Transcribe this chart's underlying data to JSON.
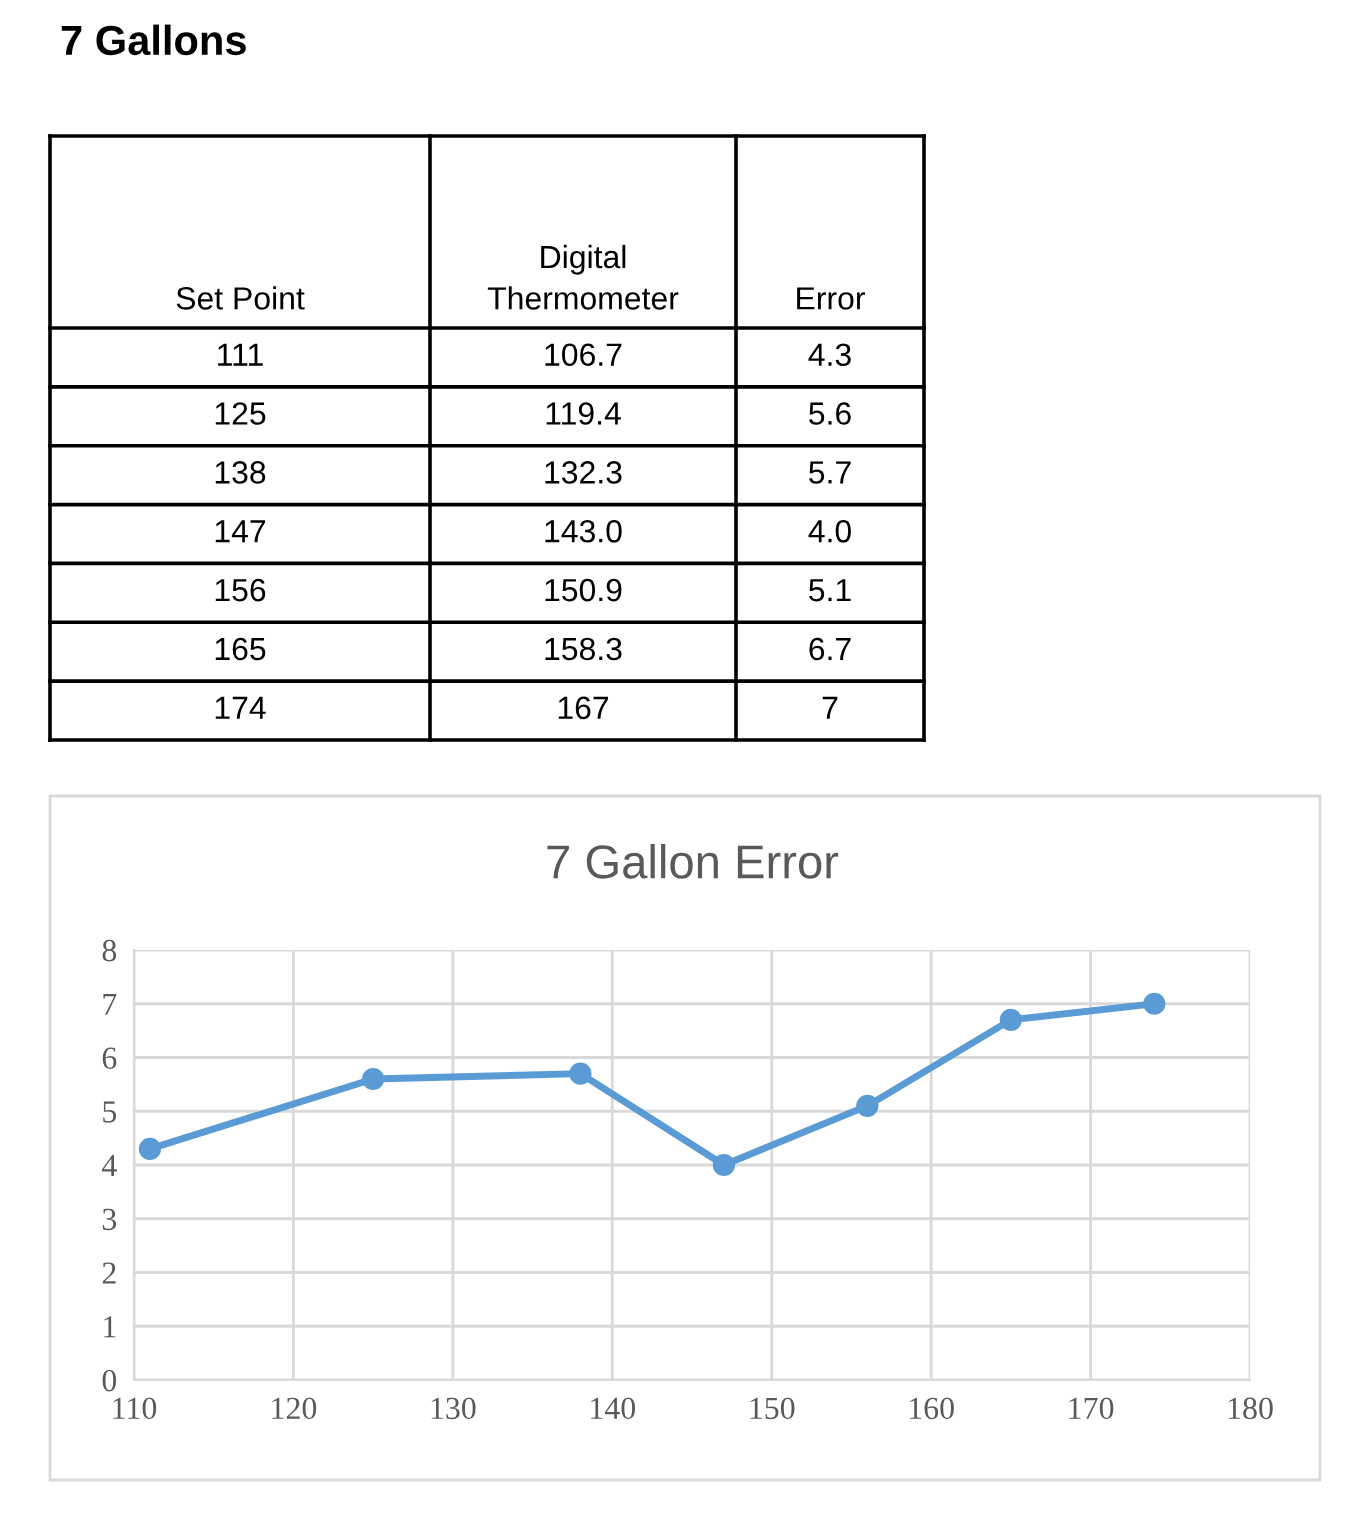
{
  "chart_data": [
    {
      "type": "other",
      "title": "7 Gallons",
      "categories": [
        "Set Point",
        "Digital\nThermometer",
        "Error"
      ],
      "cell_labels": [
        [
          "111",
          "106.7",
          "4.3"
        ],
        [
          "125",
          "119.4",
          "5.6"
        ],
        [
          "138",
          "132.3",
          "5.7"
        ],
        [
          "147",
          "143.0",
          "4.0"
        ],
        [
          "156",
          "150.9",
          "5.1"
        ],
        [
          "165",
          "158.3",
          "6.7"
        ],
        [
          "174",
          "167",
          "7"
        ]
      ]
    },
    {
      "type": "line",
      "title": "7 Gallon Error",
      "x": [
        111,
        125,
        138,
        147,
        156,
        165,
        174
      ],
      "series": [
        {
          "color": "#5b9bd5",
          "values": [
            4.3,
            5.6,
            5.7,
            4.0,
            5.1,
            6.7,
            7
          ]
        }
      ],
      "xlim": [
        110,
        180
      ],
      "xticks": [
        110,
        120,
        130,
        140,
        150,
        160,
        170,
        180
      ],
      "ylim": [
        0,
        8
      ],
      "yticks": [
        0,
        1,
        2,
        3,
        4,
        5,
        6,
        7,
        8
      ],
      "grid": true,
      "marker": "circle",
      "line_style": "solid"
    }
  ]
}
